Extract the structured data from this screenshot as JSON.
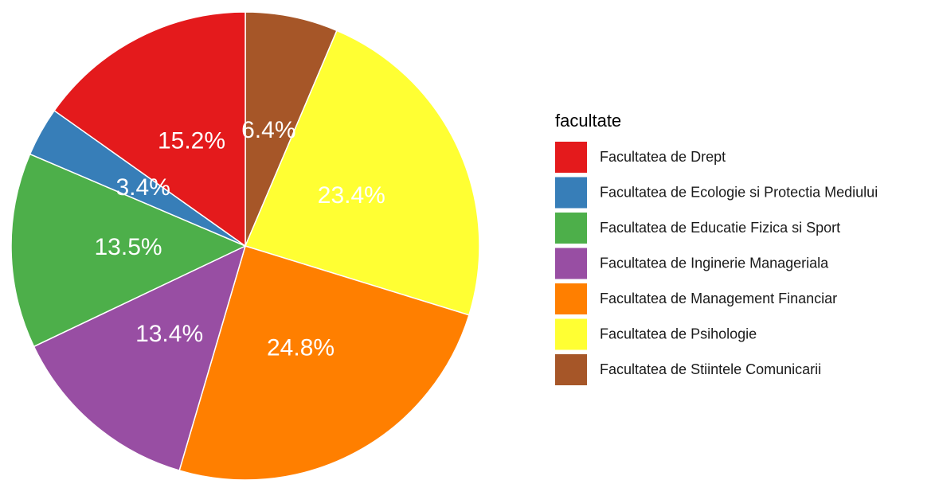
{
  "chart_data": {
    "type": "pie",
    "legend_title": "facultate",
    "categories": [
      "Facultatea de Drept",
      "Facultatea de Ecologie si Protectia Mediului",
      "Facultatea de Educatie Fizica si Sport",
      "Facultatea de Inginerie Manageriala",
      "Facultatea de Management Financiar",
      "Facultatea de Psihologie",
      "Facultatea de Stiintele Comunicarii"
    ],
    "values": [
      15.2,
      3.4,
      13.5,
      13.4,
      24.8,
      23.4,
      6.4
    ],
    "value_labels": [
      "15.2%",
      "3.4%",
      "13.5%",
      "13.4%",
      "24.8%",
      "23.4%",
      "6.4%"
    ],
    "colors": [
      "#E41A1C",
      "#377EB8",
      "#4DAF4A",
      "#984EA3",
      "#FF7F00",
      "#FFFF33",
      "#A65628"
    ],
    "legend_position": "right"
  }
}
